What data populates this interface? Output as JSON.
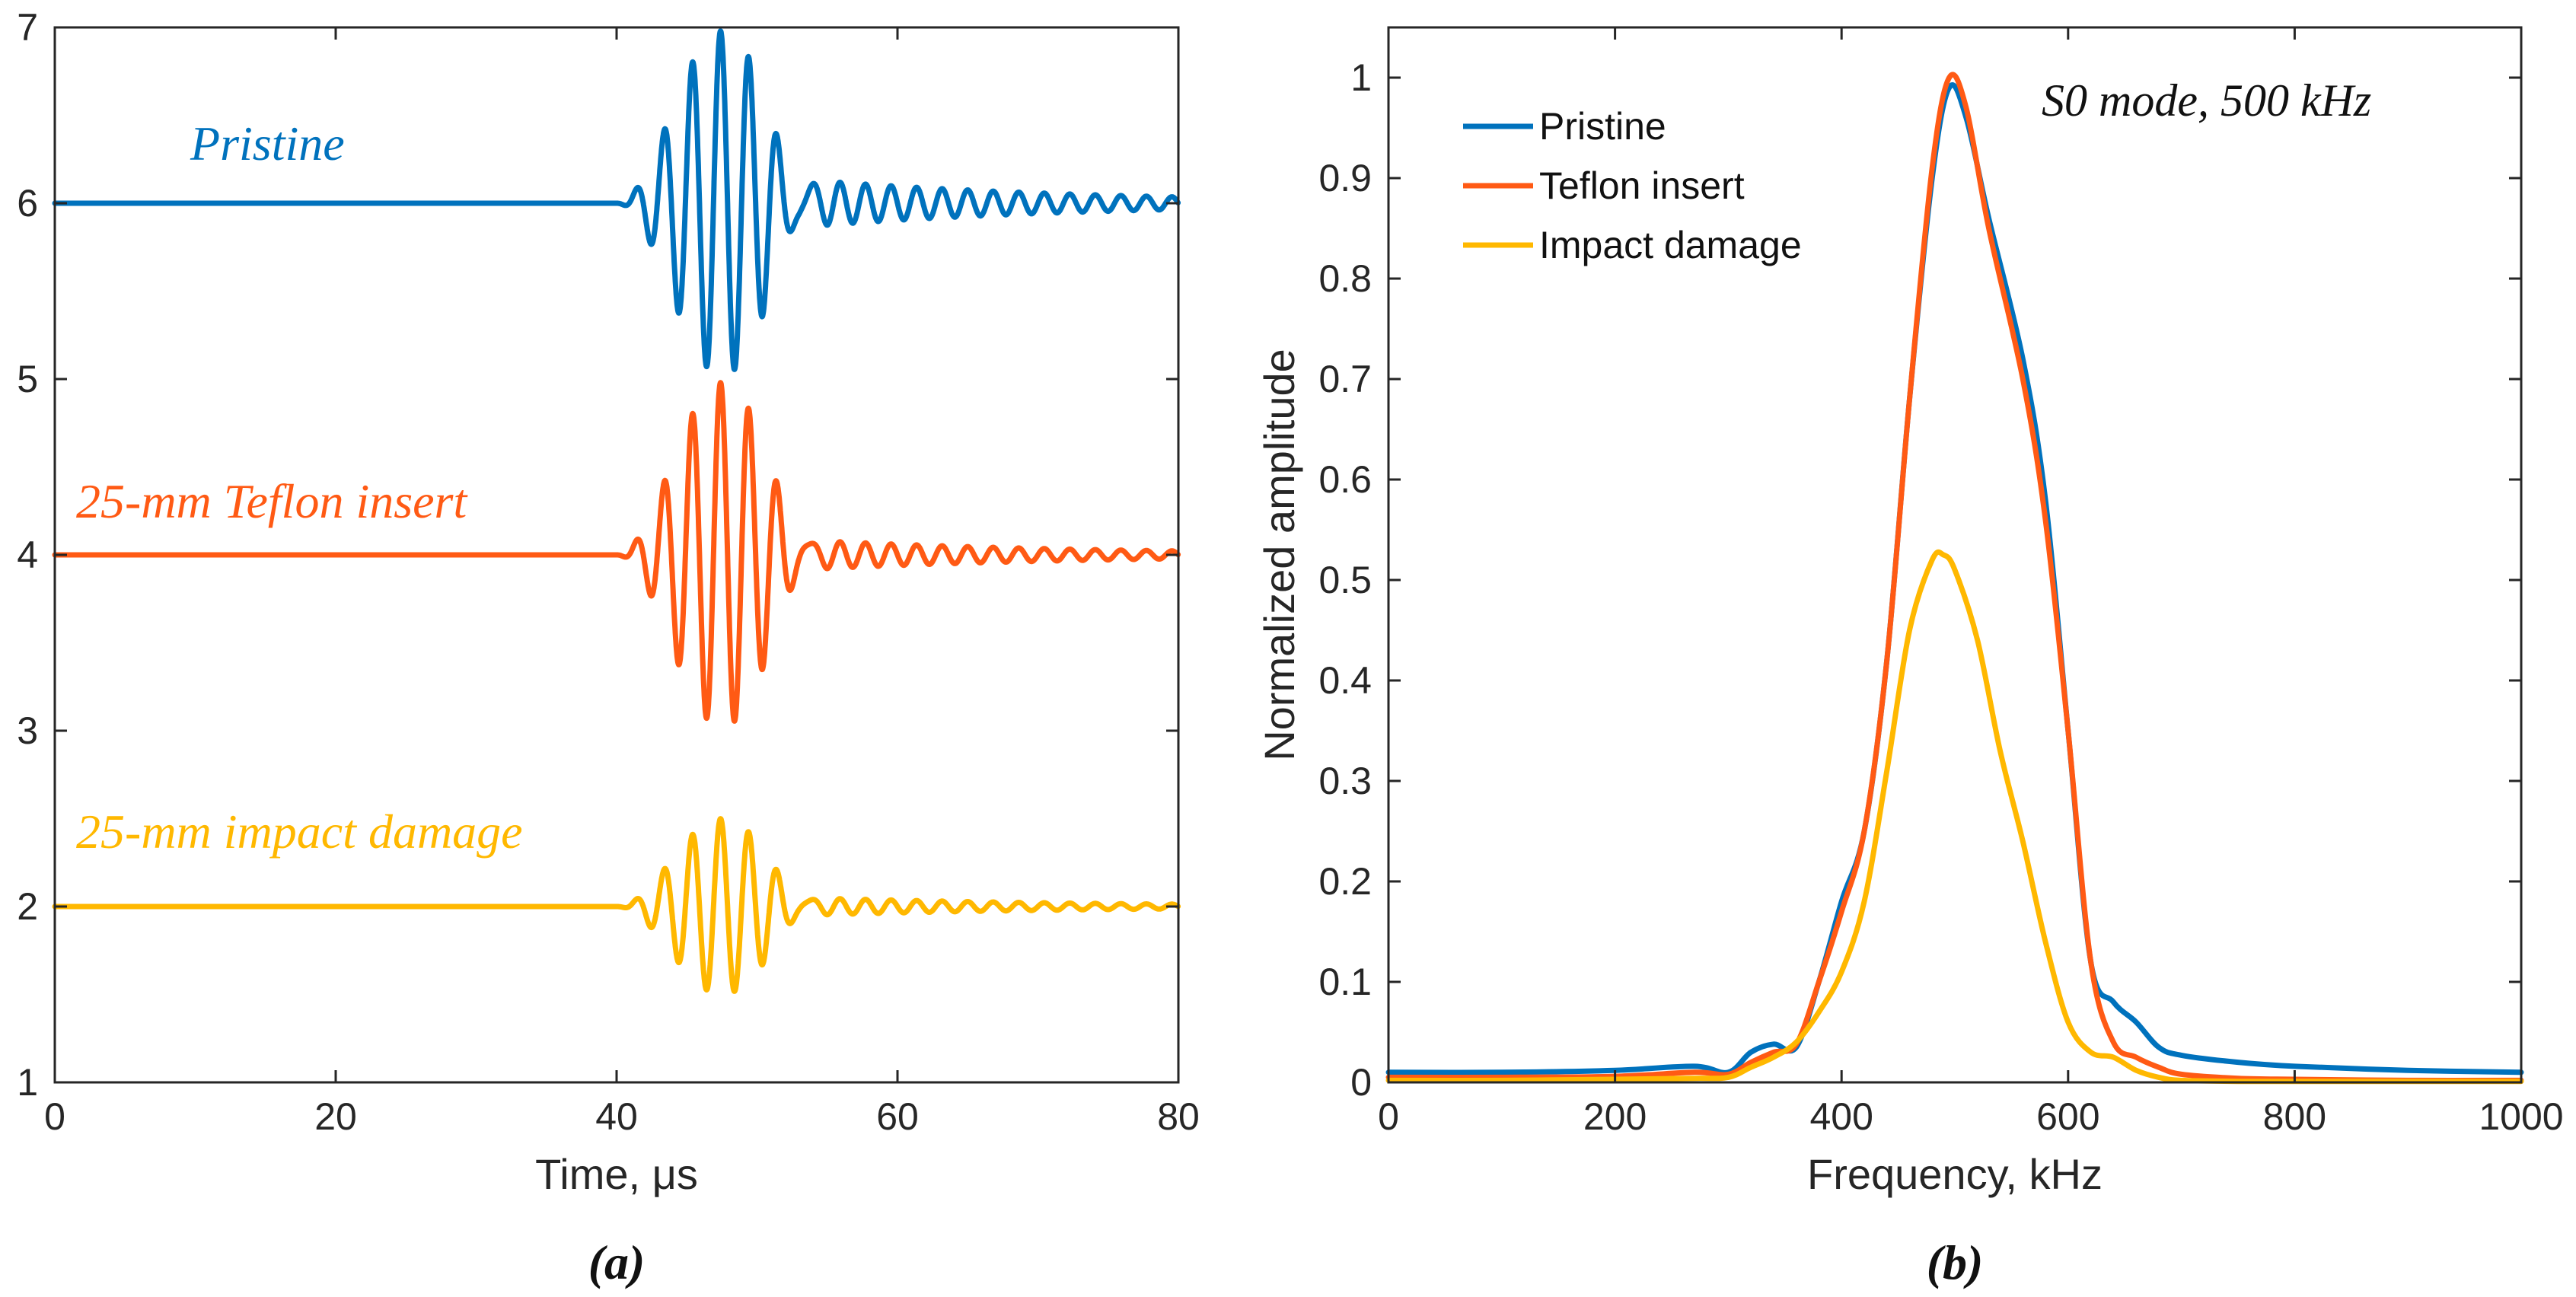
{
  "chart_data": [
    {
      "id": "a",
      "type": "line",
      "caption": "(a)",
      "xlabel": "Time, μs",
      "ylabel": "",
      "xlim": [
        0,
        80
      ],
      "ylim": [
        1,
        7
      ],
      "xticks": [
        0,
        20,
        40,
        60,
        80
      ],
      "yticks": [
        1,
        2,
        3,
        4,
        5,
        6,
        7
      ],
      "series": [
        {
          "name": "Pristine",
          "color": "#0072BD",
          "baseline": 6,
          "peak_amplitude": 0.98,
          "onset_us": 38,
          "center_us": 47.4,
          "period_us": 2.0,
          "tail_amplitude": 0.16
        },
        {
          "name": "25-mm Teflon insert",
          "color": "#FF5A14",
          "baseline": 4,
          "peak_amplitude": 0.98,
          "onset_us": 38,
          "center_us": 47.4,
          "period_us": 2.0,
          "tail_amplitude": 0.1
        },
        {
          "name": "25-mm impact damage",
          "color": "#FFB800",
          "baseline": 2,
          "peak_amplitude": 0.5,
          "onset_us": 38,
          "center_us": 47.4,
          "period_us": 2.0,
          "tail_amplitude": 0.06
        }
      ]
    },
    {
      "id": "b",
      "type": "line",
      "caption": "(b)",
      "xlabel": "Frequency, kHz",
      "ylabel": "Normalized amplitude",
      "xlim": [
        0,
        1000
      ],
      "ylim": [
        0,
        1.05
      ],
      "xticks": [
        0,
        200,
        400,
        600,
        800,
        1000
      ],
      "yticks": [
        0,
        0.1,
        0.2,
        0.3,
        0.4,
        0.5,
        0.6,
        0.7,
        0.8,
        0.9,
        1
      ],
      "ytick_labels": [
        "0",
        "0.1",
        "0.2",
        "0.3",
        "0.4",
        "0.5",
        "0.6",
        "0.7",
        "0.8",
        "0.9",
        "1"
      ],
      "annotation": "S0 mode, 500 kHz",
      "legend": "top-left",
      "series": [
        {
          "name": "Pristine",
          "color": "#0072BD",
          "points": [
            [
              0,
              0.01
            ],
            [
              100,
              0.01
            ],
            [
              200,
              0.012
            ],
            [
              270,
              0.016
            ],
            [
              300,
              0.01
            ],
            [
              320,
              0.03
            ],
            [
              340,
              0.038
            ],
            [
              360,
              0.035
            ],
            [
              380,
              0.1
            ],
            [
              400,
              0.18
            ],
            [
              420,
              0.25
            ],
            [
              440,
              0.42
            ],
            [
              460,
              0.68
            ],
            [
              480,
              0.9
            ],
            [
              495,
              0.99
            ],
            [
              510,
              0.96
            ],
            [
              530,
              0.86
            ],
            [
              560,
              0.72
            ],
            [
              580,
              0.58
            ],
            [
              600,
              0.35
            ],
            [
              620,
              0.12
            ],
            [
              640,
              0.08
            ],
            [
              660,
              0.06
            ],
            [
              680,
              0.035
            ],
            [
              700,
              0.027
            ],
            [
              750,
              0.02
            ],
            [
              800,
              0.016
            ],
            [
              900,
              0.012
            ],
            [
              1000,
              0.01
            ]
          ]
        },
        {
          "name": "Teflon insert",
          "color": "#FF5A14",
          "points": [
            [
              0,
              0.005
            ],
            [
              100,
              0.005
            ],
            [
              200,
              0.006
            ],
            [
              270,
              0.01
            ],
            [
              300,
              0.008
            ],
            [
              320,
              0.02
            ],
            [
              340,
              0.03
            ],
            [
              360,
              0.038
            ],
            [
              380,
              0.1
            ],
            [
              400,
              0.17
            ],
            [
              420,
              0.25
            ],
            [
              440,
              0.42
            ],
            [
              460,
              0.68
            ],
            [
              480,
              0.91
            ],
            [
              495,
              1.0
            ],
            [
              510,
              0.97
            ],
            [
              530,
              0.85
            ],
            [
              560,
              0.7
            ],
            [
              580,
              0.56
            ],
            [
              600,
              0.35
            ],
            [
              620,
              0.12
            ],
            [
              640,
              0.04
            ],
            [
              660,
              0.025
            ],
            [
              680,
              0.015
            ],
            [
              700,
              0.008
            ],
            [
              750,
              0.004
            ],
            [
              800,
              0.003
            ],
            [
              900,
              0.002
            ],
            [
              1000,
              0.002
            ]
          ]
        },
        {
          "name": "Impact damage",
          "color": "#FFB800",
          "points": [
            [
              0,
              0.002
            ],
            [
              100,
              0.002
            ],
            [
              200,
              0.003
            ],
            [
              270,
              0.004
            ],
            [
              300,
              0.005
            ],
            [
              320,
              0.015
            ],
            [
              340,
              0.025
            ],
            [
              360,
              0.04
            ],
            [
              380,
              0.07
            ],
            [
              400,
              0.11
            ],
            [
              420,
              0.18
            ],
            [
              440,
              0.31
            ],
            [
              460,
              0.45
            ],
            [
              480,
              0.52
            ],
            [
              490,
              0.525
            ],
            [
              500,
              0.51
            ],
            [
              520,
              0.44
            ],
            [
              540,
              0.33
            ],
            [
              560,
              0.24
            ],
            [
              580,
              0.14
            ],
            [
              600,
              0.06
            ],
            [
              620,
              0.03
            ],
            [
              640,
              0.025
            ],
            [
              660,
              0.012
            ],
            [
              680,
              0.005
            ],
            [
              700,
              0.002
            ],
            [
              750,
              0.001
            ],
            [
              800,
              0.001
            ],
            [
              900,
              0.001
            ],
            [
              1000,
              0.001
            ]
          ]
        }
      ]
    }
  ]
}
